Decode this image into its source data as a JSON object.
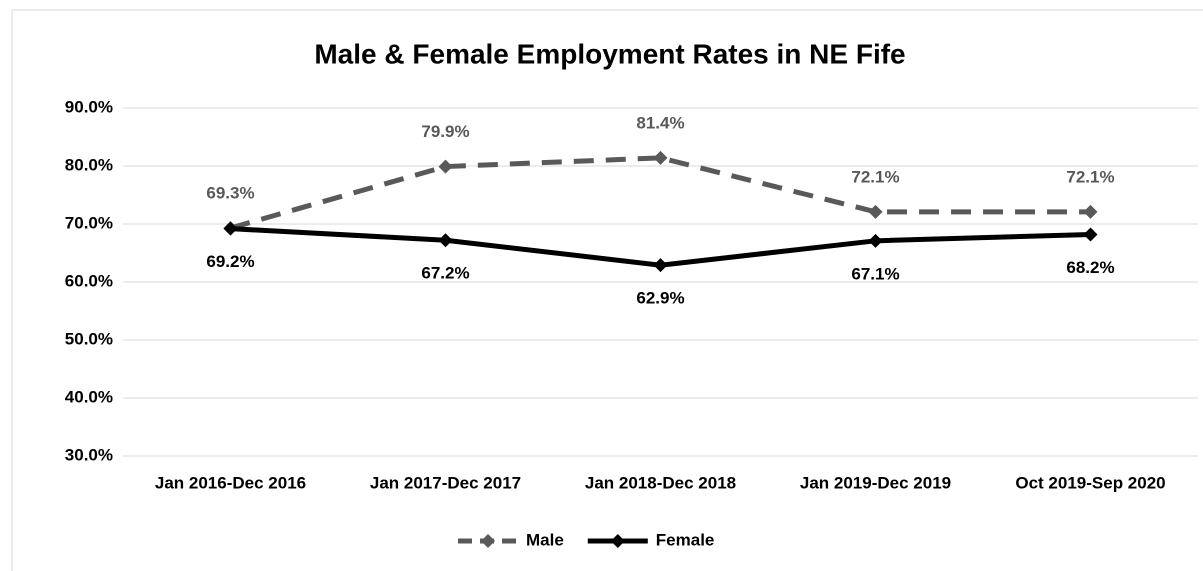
{
  "chart_data": {
    "type": "line",
    "title": "Male & Female Employment Rates in NE Fife",
    "categories": [
      "Jan 2016-Dec 2016",
      "Jan 2017-Dec 2017",
      "Jan 2018-Dec 2018",
      "Jan 2019-Dec 2019",
      "Oct 2019-Sep 2020"
    ],
    "series": [
      {
        "name": "Male",
        "color": "#595959",
        "dashed": true,
        "values": [
          69.3,
          79.9,
          81.4,
          72.1,
          72.1
        ],
        "value_labels": [
          "69.3%",
          "79.9%",
          "81.4%",
          "72.1%",
          "72.1%"
        ]
      },
      {
        "name": "Female",
        "color": "#000000",
        "dashed": false,
        "values": [
          69.2,
          67.2,
          62.9,
          67.1,
          68.2
        ],
        "value_labels": [
          "69.2%",
          "67.2%",
          "62.9%",
          "67.1%",
          "68.2%"
        ]
      }
    ],
    "ylim": [
      30,
      90
    ],
    "yticks": [
      {
        "value": 30,
        "label": "30.0%"
      },
      {
        "value": 40,
        "label": "40.0%"
      },
      {
        "value": 50,
        "label": "50.0%"
      },
      {
        "value": 60,
        "label": "60.0%"
      },
      {
        "value": 70,
        "label": "70.0%"
      },
      {
        "value": 80,
        "label": "80.0%"
      },
      {
        "value": 90,
        "label": "90.0%"
      }
    ],
    "grid": true,
    "legend": "bottom"
  }
}
